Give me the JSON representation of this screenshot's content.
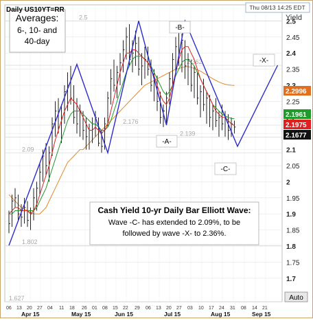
{
  "header": {
    "title": "Daily US10YT=RR",
    "timestamp": "Thu 08/13 14:25 EDT",
    "yaxis_label": "Yield",
    "auto_button": "Auto"
  },
  "chart_data": {
    "type": "bar",
    "title": "Daily US10YT=RR",
    "ylabel": "Yield",
    "ylim": [
      1.627,
      2.55
    ],
    "y_ticks": [
      1.7,
      1.75,
      1.8,
      1.85,
      1.9,
      1.95,
      2.0,
      2.05,
      2.1,
      2.15,
      2.2,
      2.25,
      2.3,
      2.35,
      2.4,
      2.45,
      2.5
    ],
    "y_tick_labels": [
      "1.7",
      "1.75",
      "1.8",
      "1.85",
      "1.9",
      "1.95",
      "2",
      "2.05",
      "2.1",
      "2.15",
      "2.2",
      "2.25",
      "2.3",
      "2.35",
      "2.4",
      "2.45",
      "2.5"
    ],
    "x_day_labels": [
      "06",
      "13",
      "20",
      "27",
      "04",
      "11",
      "18",
      "26",
      "01",
      "08",
      "15",
      "22",
      "29",
      "06",
      "13",
      "20",
      "27",
      "03",
      "10",
      "17",
      "24",
      "31",
      "08",
      "14",
      "21"
    ],
    "x_month_labels": [
      "Apr 15",
      "May 15",
      "Jun 15",
      "Jul 15",
      "Aug 15",
      "Sep 15"
    ],
    "reference_levels": [
      {
        "label": "2.5",
        "value": 2.5
      },
      {
        "label": "2.362",
        "value": 2.362
      },
      {
        "label": "2.176",
        "value": 2.176
      },
      {
        "label": "2.139",
        "value": 2.139
      },
      {
        "label": "2.09",
        "value": 2.09
      },
      {
        "label": "1.802",
        "value": 1.802
      },
      {
        "label": "1.627",
        "value": 1.627
      }
    ],
    "last_values": [
      {
        "label": "2.2996",
        "value": 2.2996,
        "color": "#e07020"
      },
      {
        "label": "2.1961",
        "value": 2.1961,
        "color": "#1f9a2b"
      },
      {
        "label": "2.1975",
        "value": 2.1975,
        "color": "#e02020"
      },
      {
        "label": "2.1677",
        "value": 2.1677,
        "color": "#111111"
      }
    ],
    "averages_box": [
      "Averages:",
      "6-, 10- and",
      "40-day"
    ],
    "wave_labels": [
      "-B-",
      "-X-",
      "-A-",
      "-C-"
    ],
    "wave_path": [
      {
        "day": 0,
        "value": 1.802
      },
      {
        "day": 22,
        "value": 2.365
      },
      {
        "day": 32,
        "value": 2.09
      },
      {
        "day": 42,
        "value": 2.5
      },
      {
        "day": 51,
        "value": 2.176
      },
      {
        "day": 57,
        "value": 2.5
      },
      {
        "day": 74,
        "value": 2.11
      },
      {
        "day": 87,
        "value": 2.362
      }
    ],
    "annotation": {
      "title": "Cash Yield 10-yr Daily Bar Elliott Wave:",
      "body": "Wave -C- has extended to 2.09%, to be followed by wave -X- to 2.36%."
    },
    "bars": [
      [
        1.91,
        1.84,
        1.87
      ],
      [
        1.96,
        1.86,
        1.94
      ],
      [
        1.98,
        1.92,
        1.95
      ],
      [
        1.96,
        1.88,
        1.9
      ],
      [
        1.93,
        1.86,
        1.89
      ],
      [
        1.95,
        1.87,
        1.92
      ],
      [
        1.94,
        1.86,
        1.88
      ],
      [
        1.92,
        1.85,
        1.9
      ],
      [
        1.98,
        1.88,
        1.95
      ],
      [
        2.0,
        1.91,
        1.98
      ],
      [
        2.06,
        1.96,
        2.03
      ],
      [
        2.1,
        2.0,
        2.08
      ],
      [
        2.12,
        2.02,
        2.05
      ],
      [
        2.11,
        2.0,
        2.09
      ],
      [
        2.2,
        2.08,
        2.18
      ],
      [
        2.25,
        2.14,
        2.22
      ],
      [
        2.26,
        2.15,
        2.17
      ],
      [
        2.24,
        2.12,
        2.2
      ],
      [
        2.3,
        2.18,
        2.28
      ],
      [
        2.34,
        2.22,
        2.3
      ],
      [
        2.36,
        2.24,
        2.26
      ],
      [
        2.3,
        2.18,
        2.2
      ],
      [
        2.26,
        2.15,
        2.18
      ],
      [
        2.24,
        2.14,
        2.22
      ],
      [
        2.22,
        2.13,
        2.16
      ],
      [
        2.2,
        2.1,
        2.14
      ],
      [
        2.18,
        2.1,
        2.16
      ],
      [
        2.2,
        2.12,
        2.18
      ],
      [
        2.22,
        2.14,
        2.2
      ],
      [
        2.2,
        2.11,
        2.12
      ],
      [
        2.16,
        2.09,
        2.11
      ],
      [
        2.2,
        2.1,
        2.18
      ],
      [
        2.28,
        2.17,
        2.26
      ],
      [
        2.35,
        2.24,
        2.32
      ],
      [
        2.38,
        2.28,
        2.3
      ],
      [
        2.36,
        2.26,
        2.34
      ],
      [
        2.4,
        2.3,
        2.37
      ],
      [
        2.44,
        2.34,
        2.41
      ],
      [
        2.48,
        2.38,
        2.45
      ],
      [
        2.49,
        2.36,
        2.38
      ],
      [
        2.44,
        2.34,
        2.4
      ],
      [
        2.47,
        2.36,
        2.43
      ],
      [
        2.45,
        2.33,
        2.35
      ],
      [
        2.4,
        2.3,
        2.36
      ],
      [
        2.42,
        2.32,
        2.38
      ],
      [
        2.42,
        2.33,
        2.35
      ],
      [
        2.38,
        2.28,
        2.3
      ],
      [
        2.35,
        2.25,
        2.32
      ],
      [
        2.33,
        2.22,
        2.25
      ],
      [
        2.28,
        2.18,
        2.2
      ],
      [
        2.24,
        2.17,
        2.22
      ],
      [
        2.28,
        2.18,
        2.26
      ],
      [
        2.34,
        2.24,
        2.32
      ],
      [
        2.4,
        2.3,
        2.38
      ],
      [
        2.45,
        2.34,
        2.42
      ],
      [
        2.48,
        2.36,
        2.4
      ],
      [
        2.46,
        2.34,
        2.44
      ],
      [
        2.44,
        2.32,
        2.36
      ],
      [
        2.4,
        2.3,
        2.38
      ],
      [
        2.38,
        2.28,
        2.3
      ],
      [
        2.36,
        2.26,
        2.34
      ],
      [
        2.34,
        2.24,
        2.26
      ],
      [
        2.3,
        2.2,
        2.28
      ],
      [
        2.32,
        2.22,
        2.24
      ],
      [
        2.28,
        2.18,
        2.26
      ],
      [
        2.27,
        2.17,
        2.2
      ],
      [
        2.24,
        2.16,
        2.22
      ],
      [
        2.26,
        2.17,
        2.19
      ],
      [
        2.22,
        2.14,
        2.2
      ],
      [
        2.24,
        2.16,
        2.18
      ],
      [
        2.22,
        2.14,
        2.2
      ],
      [
        2.21,
        2.13,
        2.16
      ],
      [
        2.2,
        2.14,
        2.18
      ],
      [
        2.19,
        2.15,
        2.17
      ]
    ],
    "ma6": [
      1.9,
      1.91,
      1.92,
      1.92,
      1.91,
      1.91,
      1.91,
      1.9,
      1.91,
      1.93,
      1.96,
      1.99,
      2.02,
      2.05,
      2.09,
      2.13,
      2.16,
      2.19,
      2.22,
      2.24,
      2.26,
      2.25,
      2.24,
      2.22,
      2.2,
      2.18,
      2.16,
      2.16,
      2.17,
      2.16,
      2.15,
      2.16,
      2.18,
      2.22,
      2.26,
      2.3,
      2.34,
      2.37,
      2.4,
      2.4,
      2.41,
      2.41,
      2.4,
      2.39,
      2.38,
      2.37,
      2.35,
      2.33,
      2.3,
      2.27,
      2.25,
      2.24,
      2.26,
      2.3,
      2.34,
      2.38,
      2.41,
      2.42,
      2.42,
      2.4,
      2.38,
      2.35,
      2.32,
      2.3,
      2.28,
      2.26,
      2.24,
      2.22,
      2.21,
      2.2,
      2.2,
      2.19,
      2.18,
      2.175
    ],
    "ma10": [
      1.9,
      1.9,
      1.91,
      1.91,
      1.91,
      1.91,
      1.91,
      1.91,
      1.91,
      1.92,
      1.94,
      1.96,
      1.98,
      2.01,
      2.04,
      2.07,
      2.1,
      2.13,
      2.16,
      2.19,
      2.21,
      2.22,
      2.22,
      2.22,
      2.21,
      2.2,
      2.19,
      2.18,
      2.18,
      2.17,
      2.16,
      2.16,
      2.17,
      2.19,
      2.22,
      2.25,
      2.28,
      2.31,
      2.34,
      2.36,
      2.38,
      2.39,
      2.39,
      2.39,
      2.38,
      2.37,
      2.36,
      2.34,
      2.32,
      2.3,
      2.28,
      2.27,
      2.28,
      2.3,
      2.33,
      2.35,
      2.37,
      2.38,
      2.38,
      2.37,
      2.36,
      2.34,
      2.32,
      2.3,
      2.28,
      2.26,
      2.24,
      2.23,
      2.22,
      2.21,
      2.205,
      2.2,
      2.197,
      2.196
    ],
    "ma40": [
      1.96,
      1.95,
      1.94,
      1.93,
      1.92,
      1.915,
      1.91,
      1.905,
      1.9,
      1.9,
      1.9,
      1.91,
      1.92,
      1.94,
      1.96,
      1.98,
      2.0,
      2.02,
      2.04,
      2.06,
      2.07,
      2.08,
      2.09,
      2.1,
      2.1,
      2.11,
      2.12,
      2.13,
      2.14,
      2.15,
      2.16,
      2.17,
      2.18,
      2.19,
      2.2,
      2.21,
      2.22,
      2.23,
      2.24,
      2.25,
      2.26,
      2.27,
      2.28,
      2.29,
      2.3,
      2.305,
      2.31,
      2.315,
      2.32,
      2.325,
      2.33,
      2.335,
      2.34,
      2.345,
      2.35,
      2.352,
      2.355,
      2.357,
      2.358,
      2.356,
      2.352,
      2.348,
      2.344,
      2.338,
      2.332,
      2.326,
      2.32,
      2.315,
      2.31,
      2.306,
      2.303,
      2.301,
      2.3,
      2.2996
    ]
  }
}
